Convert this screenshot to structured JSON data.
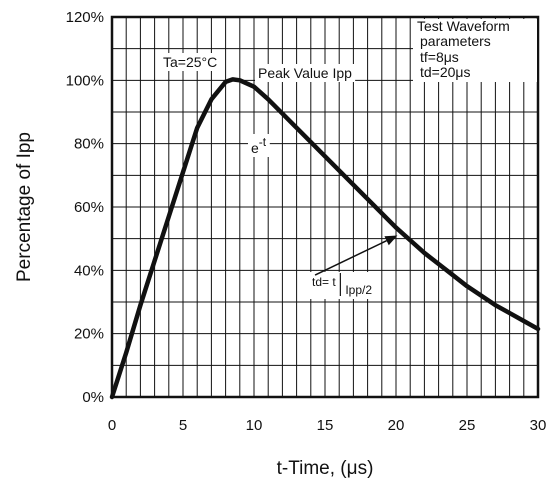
{
  "chart_data": {
    "type": "line",
    "title": "",
    "xlabel": "t-Time, (μs)",
    "ylabel": "Percentage of Ipp",
    "xlim": [
      0,
      30
    ],
    "ylim": [
      0,
      120
    ],
    "grid": true,
    "x_ticks": [
      "0",
      "5",
      "10",
      "15",
      "20",
      "25",
      "30"
    ],
    "y_ticks": [
      "0%",
      "20%",
      "40%",
      "60%",
      "80%",
      "100%",
      "120%"
    ],
    "series": [
      {
        "x": [
          0,
          1,
          2,
          3,
          4,
          5,
          6,
          7,
          8,
          8.5,
          9,
          10,
          11,
          12,
          13,
          14,
          15,
          16,
          17,
          18,
          19,
          20,
          21,
          22,
          23,
          24,
          25,
          26,
          27,
          28,
          29,
          30
        ],
        "values": [
          0,
          14,
          29,
          43,
          57,
          71,
          85,
          94,
          99.5,
          100.3,
          100,
          98,
          94,
          89.5,
          85,
          80.5,
          76,
          71.5,
          67,
          62.5,
          58,
          53.5,
          49.5,
          45.5,
          42,
          38.5,
          35,
          32,
          29,
          26.5,
          24,
          21.5
        ]
      }
    ],
    "annotations": {
      "ambient": "Ta=25°C",
      "peak": "Peak Value Ipp",
      "decay_base": "e",
      "decay_exp": "-t",
      "waveform": [
        "Test Waveform",
        "parameters",
        "tf=8μs",
        "td=20μs"
      ],
      "td_label": "td= t",
      "td_subscript": "Ipp/2",
      "td_arrow": {
        "from": [
          14.3,
          38.5
        ],
        "to": [
          20.1,
          51
        ]
      }
    },
    "colors": {
      "line": "#111111",
      "grid": "#111111",
      "background": "#ffffff"
    }
  }
}
